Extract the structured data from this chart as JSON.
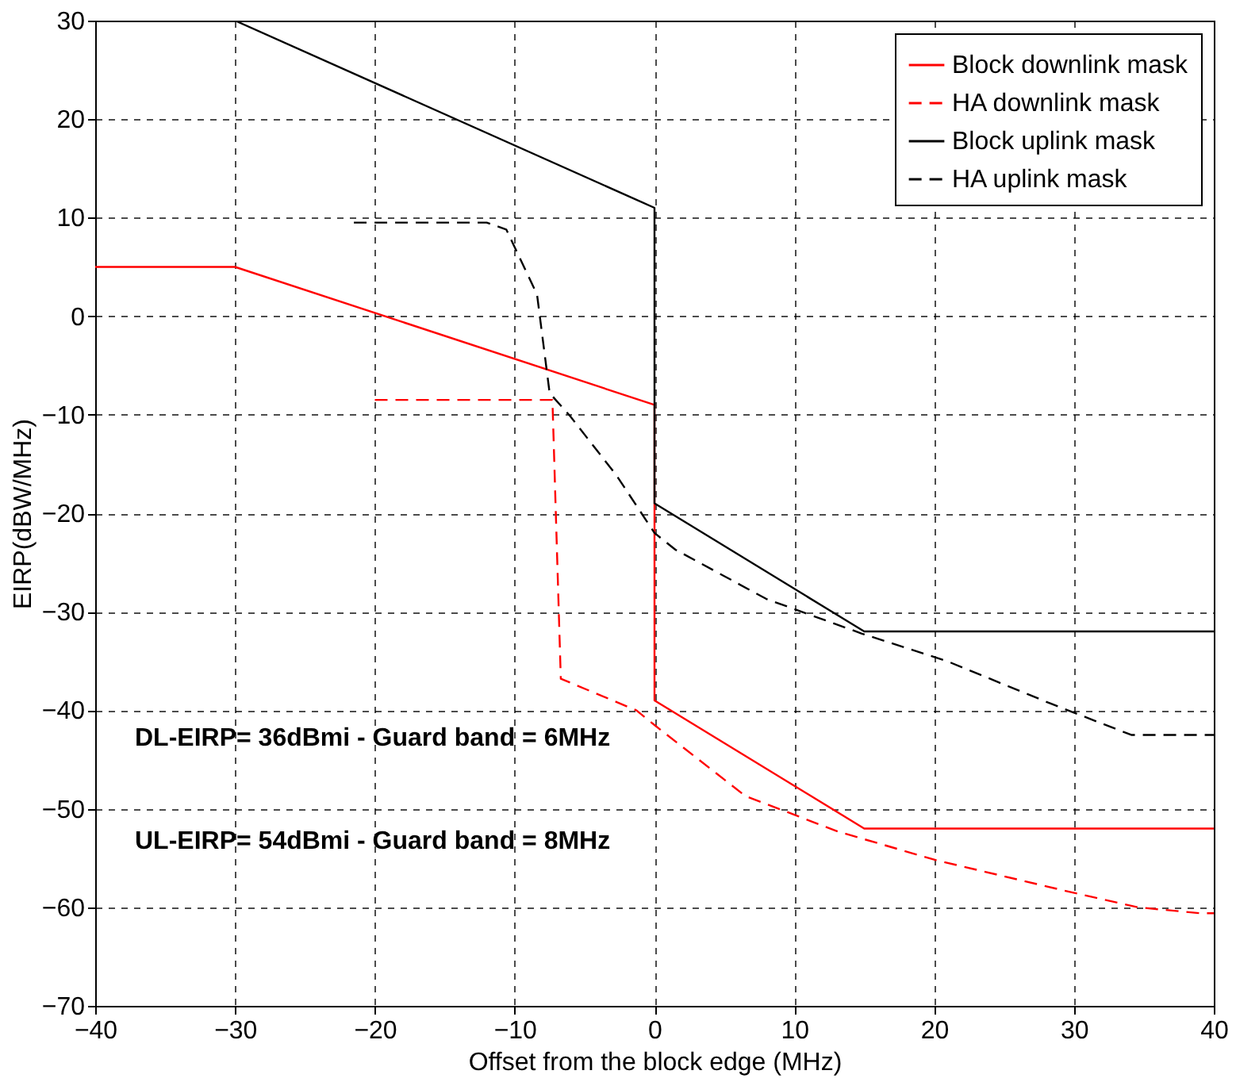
{
  "chart_data": {
    "type": "line",
    "xlabel": "Offset from the block edge (MHz)",
    "ylabel": "EIRP(dBW/MHz)",
    "xlim": [
      -40,
      40
    ],
    "xticks": [
      -40,
      -30,
      -20,
      -10,
      0,
      10,
      20,
      30,
      40
    ],
    "ylim": [
      -70,
      30
    ],
    "yticks": [
      -70,
      -60,
      -50,
      -40,
      -30,
      -20,
      -10,
      0,
      10,
      20,
      30
    ],
    "grid": true,
    "legend": "top right",
    "marker": "none",
    "series": [
      {
        "name": "Block downlink mask",
        "color": "#ff0000",
        "line_style": "solid",
        "x": [
          -40,
          -30,
          0,
          0,
          15,
          40
        ],
        "values": [
          5,
          5,
          -9,
          -39,
          -52,
          -52
        ]
      },
      {
        "name": "HA downlink mask",
        "color": "#ff0000",
        "line_style": "dashed",
        "x": [
          -20,
          -7.3,
          -6.7,
          -1.3,
          0,
          6.5,
          13.1,
          20.1,
          29.9,
          34.6,
          39,
          40
        ],
        "values": [
          -8.5,
          -8.5,
          -36.8,
          -40,
          -41.5,
          -48.7,
          -52.3,
          -55.2,
          -58.5,
          -60,
          -60.6,
          -60.6
        ]
      },
      {
        "name": "Block uplink mask",
        "color": "#000000",
        "line_style": "solid",
        "x": [
          -30,
          0,
          0,
          15,
          40
        ],
        "values": [
          30,
          11,
          -19,
          -32,
          -32
        ]
      },
      {
        "name": "HA uplink mask",
        "color": "#000000",
        "line_style": "dashed",
        "x": [
          -21.5,
          -12,
          -10.6,
          -8.4,
          -7.5,
          -6,
          -2.7,
          0,
          1.5,
          8,
          14.8,
          20.9,
          28.3,
          34.1,
          40
        ],
        "values": [
          9.5,
          9.5,
          8.8,
          2.2,
          -7.8,
          -10.2,
          -16.2,
          -22,
          -23.7,
          -28.7,
          -32.2,
          -35,
          -39.3,
          -42.5,
          -42.5
        ]
      }
    ],
    "annotations": [
      "DL-EIRP= 36dBmi - Guard band =   6MHz",
      "UL-EIRP= 54dBmi - Guard band =   8MHz"
    ]
  }
}
